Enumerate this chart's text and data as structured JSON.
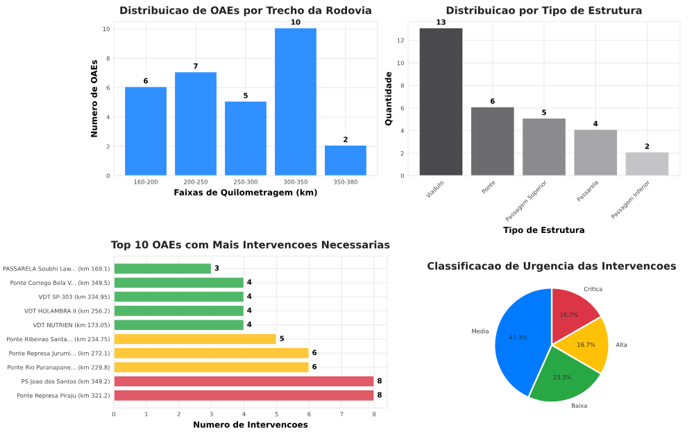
{
  "chart_data": [
    {
      "type": "bar",
      "title": "Distribuicao de OAEs por Trecho da Rodovia",
      "xlabel": "Faixas de Quilometragem (km)",
      "ylabel": "Numero de OAEs",
      "categories": [
        "160-200",
        "200-250",
        "250-300",
        "300-350",
        "350-380"
      ],
      "values": [
        6,
        7,
        5,
        10,
        2
      ],
      "color": "#3090ff",
      "ylim": [
        0,
        10.5
      ],
      "yticks": [
        0,
        2,
        4,
        6,
        8,
        10
      ],
      "grid": true,
      "data_labels": true
    },
    {
      "type": "bar",
      "title": "Distribuicao por Tipo de Estrutura",
      "xlabel": "Tipo de Estrutura",
      "ylabel": "Quantidade",
      "categories": [
        "Viaduto",
        "Ponte",
        "Passagem Superior",
        "Passarela",
        "Passagem Inferior"
      ],
      "values": [
        13,
        6,
        5,
        4,
        2
      ],
      "colors": [
        "#4a4a4c",
        "#6c6c6e",
        "#8b8b8d",
        "#a7a7a9",
        "#c4c4c6"
      ],
      "ylim": [
        0,
        13.65
      ],
      "yticks": [
        0,
        2,
        4,
        6,
        8,
        10,
        12
      ],
      "grid": true,
      "data_labels": true
    },
    {
      "type": "bar",
      "orientation": "horizontal",
      "title": "Top 10 OAEs com Mais Intervencoes Necessarias",
      "xlabel": "Numero de Intervencoes",
      "categories": [
        "PASSARELA Soubhi Law... (km 169.1)",
        "Ponte Corrego Bela V... (km 349.5)",
        "VDT SP-303 (km 334.95)",
        "VDT HOLAMBRA II (km 256.2)",
        "VDT NUTRIEN (km 173.05)",
        "Ponte Ribeirao Santa... (km 234.75)",
        "Ponte Represa Jurumi... (km 272.1)",
        "Ponte Rio Paranapane... (km 229.8)",
        "PS Joao dos Santos (km 349.2)",
        "Ponte Represa Piraju (km 321.2)"
      ],
      "values": [
        3,
        4,
        4,
        4,
        4,
        5,
        6,
        6,
        8,
        8
      ],
      "colors": [
        "#52b869",
        "#52b869",
        "#52b869",
        "#52b869",
        "#52b869",
        "#ffc83a",
        "#ffc83a",
        "#ffc83a",
        "#e05a67",
        "#e05a67"
      ],
      "xlim": [
        0,
        8.4
      ],
      "xticks": [
        0,
        1,
        2,
        3,
        4,
        5,
        6,
        7,
        8
      ],
      "grid": true,
      "data_labels": true
    },
    {
      "type": "pie",
      "title": "Classificacao de Urgencia das Intervencoes",
      "categories": [
        "Critica",
        "Alta",
        "Baixa",
        "Media"
      ],
      "values": [
        16.7,
        16.7,
        23.3,
        43.3
      ],
      "colors": [
        "#dc3545",
        "#ffc107",
        "#28a745",
        "#007bff"
      ],
      "value_labels": [
        "16.7%",
        "16.7%",
        "23.3%",
        "43.3%"
      ]
    }
  ]
}
